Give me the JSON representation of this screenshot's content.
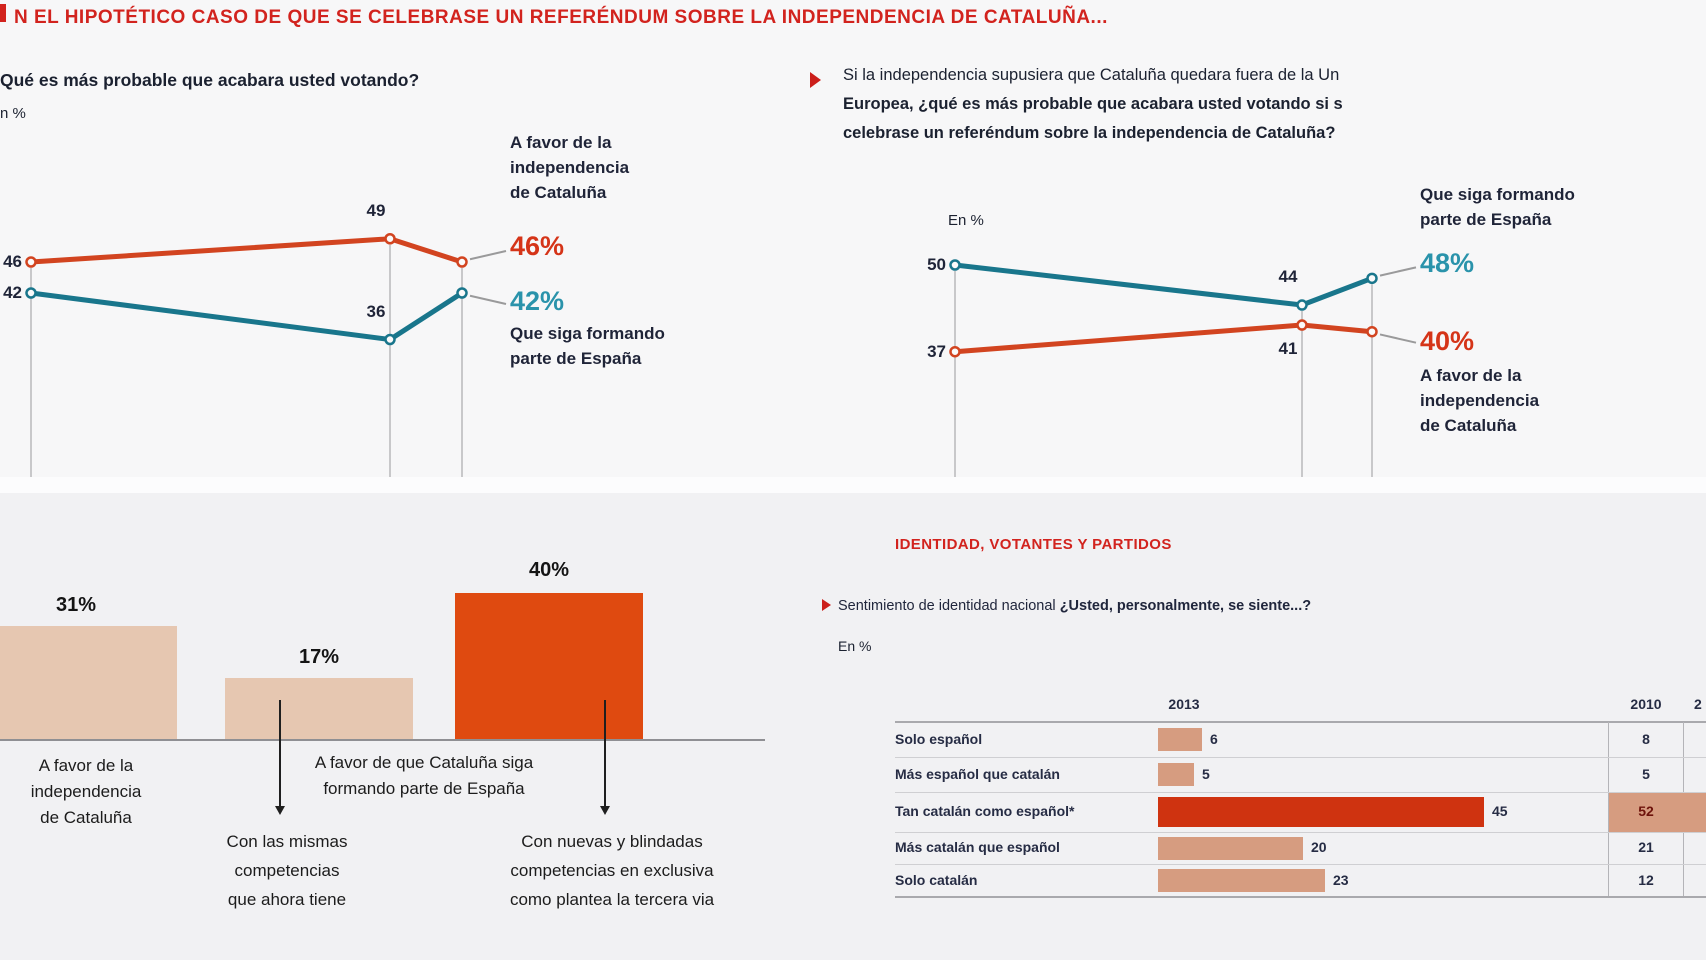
{
  "header": {
    "title": "N EL HIPOTÉTICO CASO DE QUE SE CELEBRASE UN REFERÉNDUM SOBRE LA INDEPENDENCIA DE CATALUÑA..."
  },
  "charts": {
    "left": {
      "question": "Qué es más probable que acabara usted votando?",
      "unit": "n %",
      "label_red": [
        "A favor de la",
        "independencia",
        "de Cataluña"
      ],
      "pct_red": "46%",
      "pct_teal": "42%",
      "label_teal": [
        "Que siga formando",
        "parte de España"
      ]
    },
    "right": {
      "question": [
        "Si la independencia supusiera que Cataluña quedara fuera de la Un",
        "Europea, ¿qué es más probable que acabara usted votando si s",
        "celebrase un referéndum sobre la independencia de Cataluña?"
      ],
      "unit": "En %",
      "label_teal": [
        "Que siga formando",
        "parte de España"
      ],
      "pct_teal": "48%",
      "pct_red": "40%",
      "label_red": [
        "A favor de la",
        "independencia",
        "de Cataluña"
      ]
    }
  },
  "bars": {
    "values": [
      "31%",
      "17%",
      "40%"
    ],
    "bar1_label": [
      "A favor de la",
      "independencia",
      "de Cataluña"
    ],
    "group_label": [
      "A favor de que Cataluña siga",
      "formando parte de España"
    ],
    "note1": [
      "Con las mismas",
      "competencias",
      "que ahora tiene"
    ],
    "note2": [
      "Con nuevas y blindadas",
      "competencias en exclusiva",
      "como plantea la tercera via"
    ]
  },
  "identity": {
    "heading": "IDENTIDAD, VOTANTES Y PARTIDOS",
    "q_normal": "Sentimiento de identidad nacional ",
    "q_bold": "¿Usted, personalmente, se siente...?",
    "unit": "En %",
    "col_2013": "2013",
    "col_2010": "2010",
    "col_next": "2"
  },
  "colors": {
    "red_header": "#d2231e",
    "red_line": "#d24420",
    "teal_line": "#19768c",
    "red_pct": "#d53418",
    "teal_pct": "#2a93ab",
    "pink_bar": "#e6c7b1",
    "orange_bar": "#df4a10",
    "table_bar": "#d69c80",
    "table_bar_big": "#cf3310",
    "highlight_text": "#6e130b"
  },
  "chart_data": [
    {
      "id": "referendum_vote",
      "type": "line",
      "title": "Qué es más probable que acabara usted votando?",
      "x_points": 3,
      "grid": true,
      "series": [
        {
          "name": "A favor de la independencia de Cataluña",
          "color": "#d24420",
          "values": [
            46,
            49,
            46
          ],
          "point_labels": [
            "46",
            "49",
            "46%"
          ],
          "label_pos": [
            "left",
            "above",
            null
          ],
          "conn": "up"
        },
        {
          "name": "Que siga formando parte de España",
          "color": "#19768c",
          "values": [
            42,
            36,
            42
          ],
          "point_labels": [
            "42",
            "36",
            "42%"
          ],
          "label_pos": [
            "left",
            "above",
            null
          ],
          "conn": "down"
        }
      ]
    },
    {
      "id": "referendum_vote_if_out_of_eu",
      "type": "line",
      "title": "Si la independencia supusiera que Cataluña quedara fuera de la Unión Europea...",
      "x_points": 3,
      "grid": true,
      "series": [
        {
          "name": "Que siga formando parte de España",
          "color": "#19768c",
          "values": [
            50,
            44,
            48
          ],
          "point_labels": [
            "50",
            "44",
            "48%"
          ],
          "label_pos": [
            "left",
            "above",
            null
          ],
          "conn": "up"
        },
        {
          "name": "A favor de la independencia de Cataluña",
          "color": "#d24420",
          "values": [
            37,
            41,
            40
          ],
          "point_labels": [
            "37",
            "41",
            "40%"
          ],
          "label_pos": [
            "left",
            "below",
            null
          ],
          "conn": "down"
        }
      ]
    },
    {
      "id": "vote_options_bars",
      "type": "bar",
      "categories": [
        "A favor de la independencia de Cataluña",
        "A favor de que Cataluña siga formando parte de España (con las mismas competencias que ahora tiene)",
        "A favor de que Cataluña siga formando parte de España (con nuevas y blindadas competencias en exclusiva como plantea la tercera via)"
      ],
      "values": [
        31,
        17,
        40
      ],
      "bar_colors": [
        "#e6c7b1",
        "#e6c7b1",
        "#df4a10"
      ]
    },
    {
      "id": "identity_table",
      "type": "table",
      "title": "Sentimiento de identidad nacional ¿Usted, personalmente, se siente...?",
      "columns": [
        "2013",
        "2010"
      ],
      "rows": [
        {
          "label": "Solo español",
          "v2013": 6,
          "v2010": "8",
          "highlight": false
        },
        {
          "label": "Más español que catalán",
          "v2013": 5,
          "v2010": "5",
          "highlight": false
        },
        {
          "label": "Tan catalán como español*",
          "v2013": 45,
          "v2010": "52",
          "highlight": true
        },
        {
          "label": "Más catalán que español",
          "v2013": 20,
          "v2010": "21",
          "highlight": false
        },
        {
          "label": "Solo catalán",
          "v2013": 23,
          "v2010": "12",
          "highlight": false
        }
      ]
    }
  ]
}
